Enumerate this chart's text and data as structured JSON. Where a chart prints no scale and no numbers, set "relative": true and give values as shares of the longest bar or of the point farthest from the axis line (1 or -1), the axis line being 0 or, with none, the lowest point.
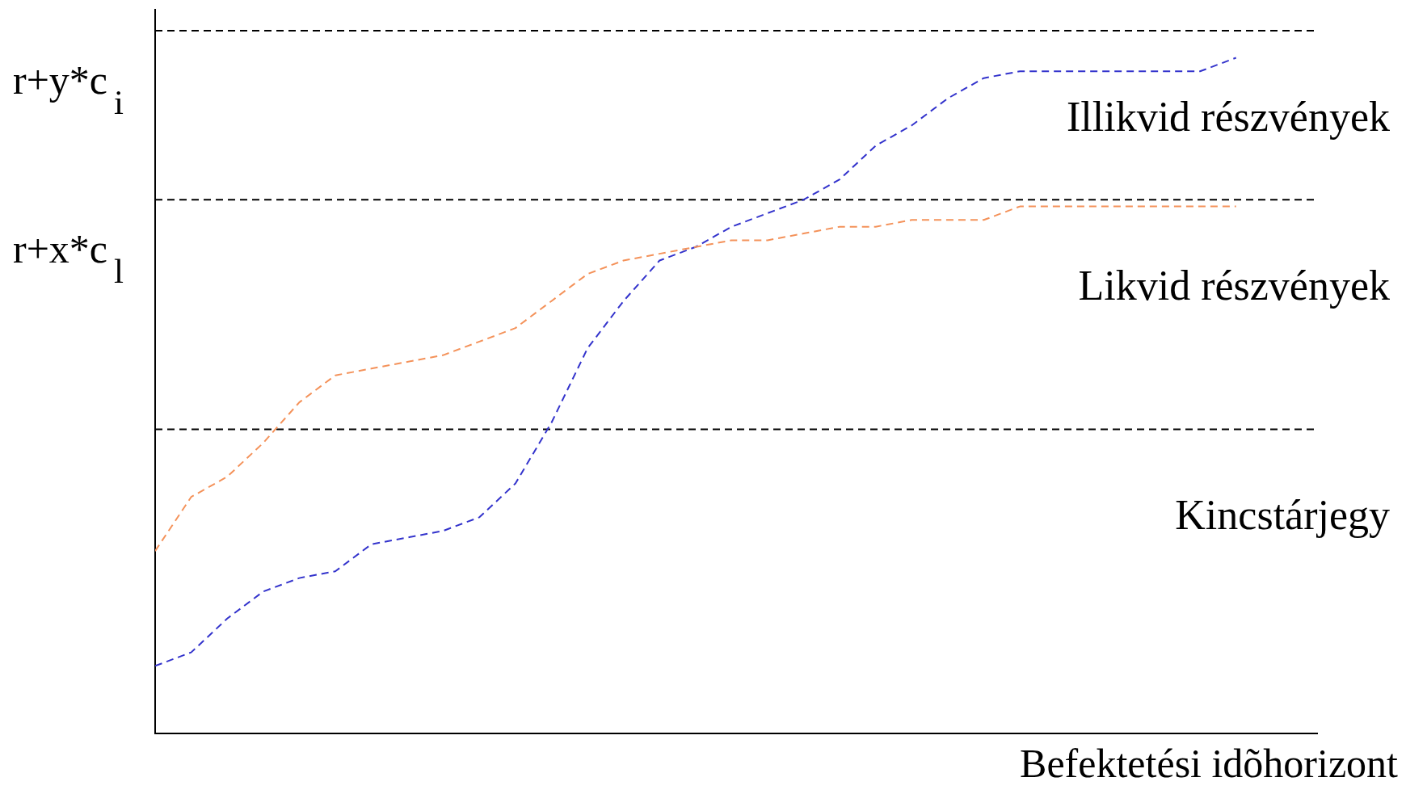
{
  "chart_data": {
    "type": "line",
    "relative": true,
    "xlabel": "Befektetési idõhorizont",
    "categories": [
      null,
      null,
      null,
      null,
      null,
      null,
      null,
      null,
      null,
      null,
      null,
      null,
      null,
      null,
      null,
      null,
      null,
      null,
      null,
      null,
      null,
      null,
      null,
      null,
      null,
      null,
      null,
      null,
      null,
      null,
      null
    ],
    "series": [
      {
        "color": "#f4925a",
        "line_style": "dashed",
        "values": [
          0.27,
          0.35,
          0.38,
          0.43,
          0.49,
          0.53,
          0.54,
          0.55,
          0.56,
          0.58,
          0.6,
          0.64,
          0.68,
          0.7,
          0.71,
          0.72,
          0.73,
          0.73,
          0.74,
          0.75,
          0.75,
          0.76,
          0.76,
          0.76,
          0.78,
          0.78,
          0.78,
          0.78,
          0.78,
          0.78,
          0.78
        ]
      },
      {
        "color": "#3333cc",
        "line_style": "dashed",
        "values": [
          0.1,
          0.12,
          0.17,
          0.21,
          0.23,
          0.24,
          0.28,
          0.29,
          0.3,
          0.32,
          0.37,
          0.46,
          0.57,
          0.64,
          0.7,
          0.72,
          0.75,
          0.77,
          0.79,
          0.82,
          0.87,
          0.9,
          0.94,
          0.97,
          0.98,
          0.98,
          0.98,
          0.98,
          0.98,
          0.98,
          1
        ]
      }
    ],
    "ref_lines": [
      {
        "axis": "y",
        "value": 1.04,
        "label": "r+y*c$_{i}$",
        "color": "#000000",
        "line_style": "dashed"
      },
      {
        "axis": "y",
        "value": 0.79,
        "label": "r+x*c$_{l}$",
        "color": "#000000",
        "line_style": "dashed"
      },
      {
        "axis": "y",
        "value": 0.45,
        "label": null,
        "color": "#000000",
        "line_style": "dashed"
      }
    ],
    "annotations": [
      "Illikvid részvények",
      "Likvid részvények",
      "Kincstárjegy"
    ],
    "legend": false,
    "grid": false,
    "marker": "none"
  }
}
